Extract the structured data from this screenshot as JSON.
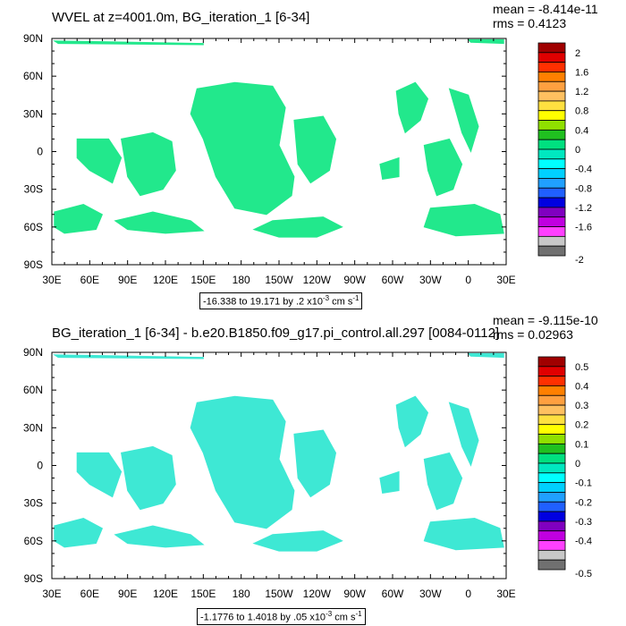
{
  "chart_data": [
    {
      "type": "heatmap",
      "title": "WVEL at z=4001.0m, BG_iteration_1 [6-34]",
      "mean_text": "mean = -8.414e-11",
      "rms_text": "rms = 0.4123",
      "x_ticks": [
        "30E",
        "60E",
        "90E",
        "120E",
        "150E",
        "180",
        "150W",
        "120W",
        "90W",
        "60W",
        "30W",
        "0",
        "30E"
      ],
      "y_ticks": [
        "90N",
        "60N",
        "30N",
        "0",
        "30S",
        "60S",
        "90S"
      ],
      "xlim_lon": [
        30,
        390
      ],
      "ylim_lat": [
        -90,
        90
      ],
      "range_text": "-16.338 to 19.171 by .2 x10",
      "range_exp": "-3",
      "range_unit": " cm s",
      "range_unit_exp": "-1",
      "colorbar_labels": [
        "2",
        "1.6",
        "1.2",
        "0.8",
        "0.4",
        "0",
        "-0.4",
        "-0.8",
        "-1.2",
        "-1.6",
        "-2"
      ],
      "colorbar_colors": [
        "#a00000",
        "#e00000",
        "#ff3000",
        "#ff8000",
        "#ffa040",
        "#ffc060",
        "#ffe040",
        "#ffff00",
        "#90e000",
        "#20c020",
        "#00e080",
        "#00e8c0",
        "#00ffff",
        "#00d0ff",
        "#20a0ff",
        "#2060ff",
        "#0000e0",
        "#8000c0",
        "#c000e0",
        "#ff40ff",
        "#c8c8c8",
        "#707070"
      ]
    },
    {
      "type": "heatmap",
      "title": "BG_iteration_1 [6-34] - b.e20.B1850.f09_g17.pi_control.all.297 [0084-0112]",
      "mean_text": "mean = -9.115e-10",
      "rms_text": "rms = 0.02963",
      "x_ticks": [
        "30E",
        "60E",
        "90E",
        "120E",
        "150E",
        "180",
        "150W",
        "120W",
        "90W",
        "60W",
        "30W",
        "0",
        "30E"
      ],
      "y_ticks": [
        "90N",
        "60N",
        "30N",
        "0",
        "30S",
        "60S",
        "90S"
      ],
      "xlim_lon": [
        30,
        390
      ],
      "ylim_lat": [
        -90,
        90
      ],
      "range_text": "-1.1776 to 1.4018 by .05 x10",
      "range_exp": "-3",
      "range_unit": " cm s",
      "range_unit_exp": "-1",
      "colorbar_labels": [
        "0.5",
        "0.4",
        "0.3",
        "0.2",
        "0.1",
        "0",
        "-0.1",
        "-0.2",
        "-0.3",
        "-0.4",
        "-0.5"
      ],
      "colorbar_colors": [
        "#a00000",
        "#e00000",
        "#ff3000",
        "#ff8000",
        "#ffa040",
        "#ffc060",
        "#ffe040",
        "#ffff00",
        "#90e000",
        "#20c020",
        "#00e080",
        "#00e8c0",
        "#00ffff",
        "#00d0ff",
        "#20a0ff",
        "#2060ff",
        "#0000e0",
        "#8000c0",
        "#c000e0",
        "#ff40ff",
        "#c8c8c8",
        "#707070"
      ]
    }
  ],
  "field": {
    "ocean_fill_color": "#ffffff",
    "dominant_color_top": "#22e88c",
    "dominant_color_bottom": "#3ee8d4",
    "top_panel_regions": [
      {
        "name": "north-pole-strip",
        "points": [
          [
            32,
            88
          ],
          [
            150,
            86
          ],
          [
            150,
            85
          ],
          [
            35,
            86
          ]
        ]
      },
      {
        "name": "arctic-east-strip",
        "points": [
          [
            360,
            89
          ],
          [
            388,
            89
          ],
          [
            388,
            86
          ],
          [
            362,
            87
          ]
        ]
      },
      {
        "name": "atlantic-mid",
        "points": [
          [
            50,
            10
          ],
          [
            75,
            10
          ],
          [
            85,
            -5
          ],
          [
            78,
            -25
          ],
          [
            60,
            -15
          ],
          [
            50,
            -5
          ]
        ]
      },
      {
        "name": "indian-central",
        "points": [
          [
            85,
            10
          ],
          [
            110,
            15
          ],
          [
            125,
            8
          ],
          [
            128,
            -15
          ],
          [
            118,
            -30
          ],
          [
            100,
            -35
          ],
          [
            90,
            -20
          ]
        ]
      },
      {
        "name": "pacific-west-large",
        "points": [
          [
            145,
            50
          ],
          [
            175,
            55
          ],
          [
            205,
            52
          ],
          [
            215,
            35
          ],
          [
            210,
            5
          ],
          [
            222,
            -20
          ],
          [
            220,
            -35
          ],
          [
            200,
            -50
          ],
          [
            175,
            -45
          ],
          [
            160,
            -20
          ],
          [
            150,
            10
          ],
          [
            140,
            30
          ]
        ]
      },
      {
        "name": "pacific-east",
        "points": [
          [
            222,
            25
          ],
          [
            245,
            28
          ],
          [
            255,
            10
          ],
          [
            250,
            -15
          ],
          [
            235,
            -25
          ],
          [
            225,
            -10
          ]
        ]
      },
      {
        "name": "south-pacific",
        "points": [
          [
            205,
            -55
          ],
          [
            245,
            -52
          ],
          [
            260,
            -60
          ],
          [
            240,
            -68
          ],
          [
            210,
            -68
          ],
          [
            190,
            -62
          ]
        ]
      },
      {
        "name": "south-indian",
        "points": [
          [
            80,
            -55
          ],
          [
            110,
            -48
          ],
          [
            140,
            -55
          ],
          [
            150,
            -63
          ],
          [
            120,
            -65
          ],
          [
            90,
            -62
          ]
        ]
      },
      {
        "name": "southern-west",
        "points": [
          [
            32,
            -48
          ],
          [
            55,
            -42
          ],
          [
            70,
            -50
          ],
          [
            65,
            -62
          ],
          [
            40,
            -65
          ],
          [
            32,
            -60
          ]
        ]
      },
      {
        "name": "atlantic-north",
        "points": [
          [
            303,
            48
          ],
          [
            318,
            55
          ],
          [
            328,
            42
          ],
          [
            322,
            25
          ],
          [
            310,
            15
          ],
          [
            305,
            30
          ]
        ]
      },
      {
        "name": "atlantic-south",
        "points": [
          [
            325,
            5
          ],
          [
            345,
            10
          ],
          [
            355,
            -10
          ],
          [
            348,
            -30
          ],
          [
            335,
            -35
          ],
          [
            328,
            -15
          ]
        ]
      },
      {
        "name": "south-atlantic-east",
        "points": [
          [
            330,
            -45
          ],
          [
            365,
            -42
          ],
          [
            385,
            -50
          ],
          [
            388,
            -65
          ],
          [
            350,
            -67
          ],
          [
            325,
            -60
          ]
        ]
      },
      {
        "name": "atlantic-strip-east",
        "points": [
          [
            345,
            50
          ],
          [
            360,
            45
          ],
          [
            368,
            20
          ],
          [
            362,
            0
          ],
          [
            355,
            15
          ]
        ]
      },
      {
        "name": "atlantic-west-small",
        "points": [
          [
            290,
            -10
          ],
          [
            305,
            -5
          ],
          [
            305,
            -20
          ],
          [
            292,
            -22
          ]
        ]
      }
    ],
    "bottom_panel_regions": [
      {
        "name": "north-pole-strip",
        "points": [
          [
            32,
            88
          ],
          [
            150,
            86
          ],
          [
            150,
            85
          ],
          [
            35,
            86
          ]
        ]
      },
      {
        "name": "arctic-east-strip",
        "points": [
          [
            360,
            89
          ],
          [
            388,
            89
          ],
          [
            388,
            86
          ],
          [
            362,
            87
          ]
        ]
      },
      {
        "name": "atlantic-mid",
        "points": [
          [
            50,
            10
          ],
          [
            75,
            10
          ],
          [
            85,
            -5
          ],
          [
            78,
            -25
          ],
          [
            60,
            -15
          ],
          [
            50,
            -5
          ]
        ]
      },
      {
        "name": "indian-central",
        "points": [
          [
            85,
            10
          ],
          [
            110,
            15
          ],
          [
            125,
            8
          ],
          [
            128,
            -15
          ],
          [
            118,
            -30
          ],
          [
            100,
            -35
          ],
          [
            90,
            -20
          ]
        ]
      },
      {
        "name": "pacific-west-large",
        "points": [
          [
            145,
            50
          ],
          [
            175,
            55
          ],
          [
            205,
            52
          ],
          [
            215,
            35
          ],
          [
            210,
            5
          ],
          [
            222,
            -20
          ],
          [
            220,
            -35
          ],
          [
            200,
            -50
          ],
          [
            175,
            -45
          ],
          [
            160,
            -20
          ],
          [
            150,
            10
          ],
          [
            140,
            30
          ]
        ]
      },
      {
        "name": "pacific-east",
        "points": [
          [
            222,
            25
          ],
          [
            245,
            28
          ],
          [
            255,
            10
          ],
          [
            250,
            -15
          ],
          [
            235,
            -25
          ],
          [
            225,
            -10
          ]
        ]
      },
      {
        "name": "south-pacific",
        "points": [
          [
            205,
            -55
          ],
          [
            245,
            -52
          ],
          [
            260,
            -60
          ],
          [
            240,
            -68
          ],
          [
            210,
            -68
          ],
          [
            190,
            -62
          ]
        ]
      },
      {
        "name": "south-indian",
        "points": [
          [
            80,
            -55
          ],
          [
            110,
            -48
          ],
          [
            140,
            -55
          ],
          [
            150,
            -63
          ],
          [
            120,
            -65
          ],
          [
            90,
            -62
          ]
        ]
      },
      {
        "name": "southern-west",
        "points": [
          [
            32,
            -48
          ],
          [
            55,
            -42
          ],
          [
            70,
            -50
          ],
          [
            65,
            -62
          ],
          [
            40,
            -65
          ],
          [
            32,
            -60
          ]
        ]
      },
      {
        "name": "atlantic-north",
        "points": [
          [
            303,
            48
          ],
          [
            318,
            55
          ],
          [
            328,
            42
          ],
          [
            322,
            25
          ],
          [
            310,
            15
          ],
          [
            305,
            30
          ]
        ]
      },
      {
        "name": "atlantic-south",
        "points": [
          [
            325,
            5
          ],
          [
            345,
            10
          ],
          [
            355,
            -10
          ],
          [
            348,
            -30
          ],
          [
            335,
            -35
          ],
          [
            328,
            -15
          ]
        ]
      },
      {
        "name": "south-atlantic-east",
        "points": [
          [
            330,
            -45
          ],
          [
            365,
            -42
          ],
          [
            385,
            -50
          ],
          [
            388,
            -65
          ],
          [
            350,
            -67
          ],
          [
            325,
            -60
          ]
        ]
      },
      {
        "name": "atlantic-strip-east",
        "points": [
          [
            345,
            50
          ],
          [
            360,
            45
          ],
          [
            368,
            20
          ],
          [
            362,
            0
          ],
          [
            355,
            15
          ]
        ]
      },
      {
        "name": "atlantic-west-small",
        "points": [
          [
            290,
            -10
          ],
          [
            305,
            -5
          ],
          [
            305,
            -20
          ],
          [
            292,
            -22
          ]
        ]
      }
    ]
  }
}
